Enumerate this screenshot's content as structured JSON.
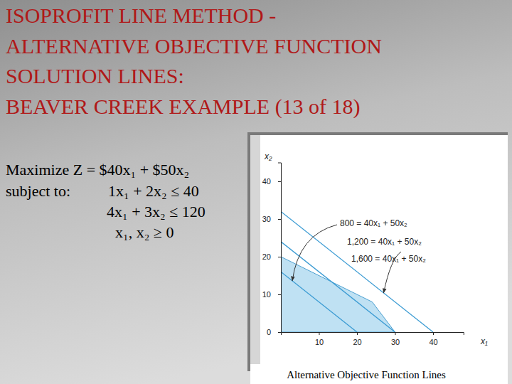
{
  "slide": {
    "title": [
      "ISOPROFIT LINE METHOD -",
      "ALTERNATIVE OBJECTIVE FUNCTION",
      "SOLUTION LINES:",
      "BEAVER CREEK EXAMPLE (13 of 18)"
    ],
    "formulation": [
      "Maximize Z = $40x₁ + $50x₂",
      "subject to:",
      "1x₁ + 2x₂ ≤ 40",
      "4x₁ + 3x₂ ≤ 120",
      "x₁, x₂ ≥ 0"
    ]
  },
  "chart_data": {
    "type": "line",
    "title": "Alternative Objective Function Lines",
    "x_label": "x₁",
    "y_label": "x₂",
    "xlim": [
      0,
      48
    ],
    "ylim": [
      0,
      45
    ],
    "xticks": [
      10,
      20,
      30,
      40
    ],
    "yticks": [
      0,
      10,
      20,
      30,
      40
    ],
    "series": [
      {
        "type": "area",
        "color": "#bfe1f3",
        "x": [
          0,
          24,
          30
        ],
        "values": [
          20,
          8,
          0
        ]
      },
      {
        "type": "line",
        "name": "800 = 40x₁ + 50x₂",
        "color": "#3b9bd3",
        "x": [
          0,
          20
        ],
        "values": [
          16,
          0
        ]
      },
      {
        "type": "line",
        "name": "1,200 = 40x₁ + 50x₂",
        "color": "#3b9bd3",
        "x": [
          0,
          30
        ],
        "values": [
          24,
          0
        ]
      },
      {
        "type": "line",
        "name": "1,600 = 40x₁ + 50x₂",
        "color": "#3b9bd3",
        "x": [
          0,
          40
        ],
        "values": [
          32,
          0
        ]
      }
    ]
  }
}
